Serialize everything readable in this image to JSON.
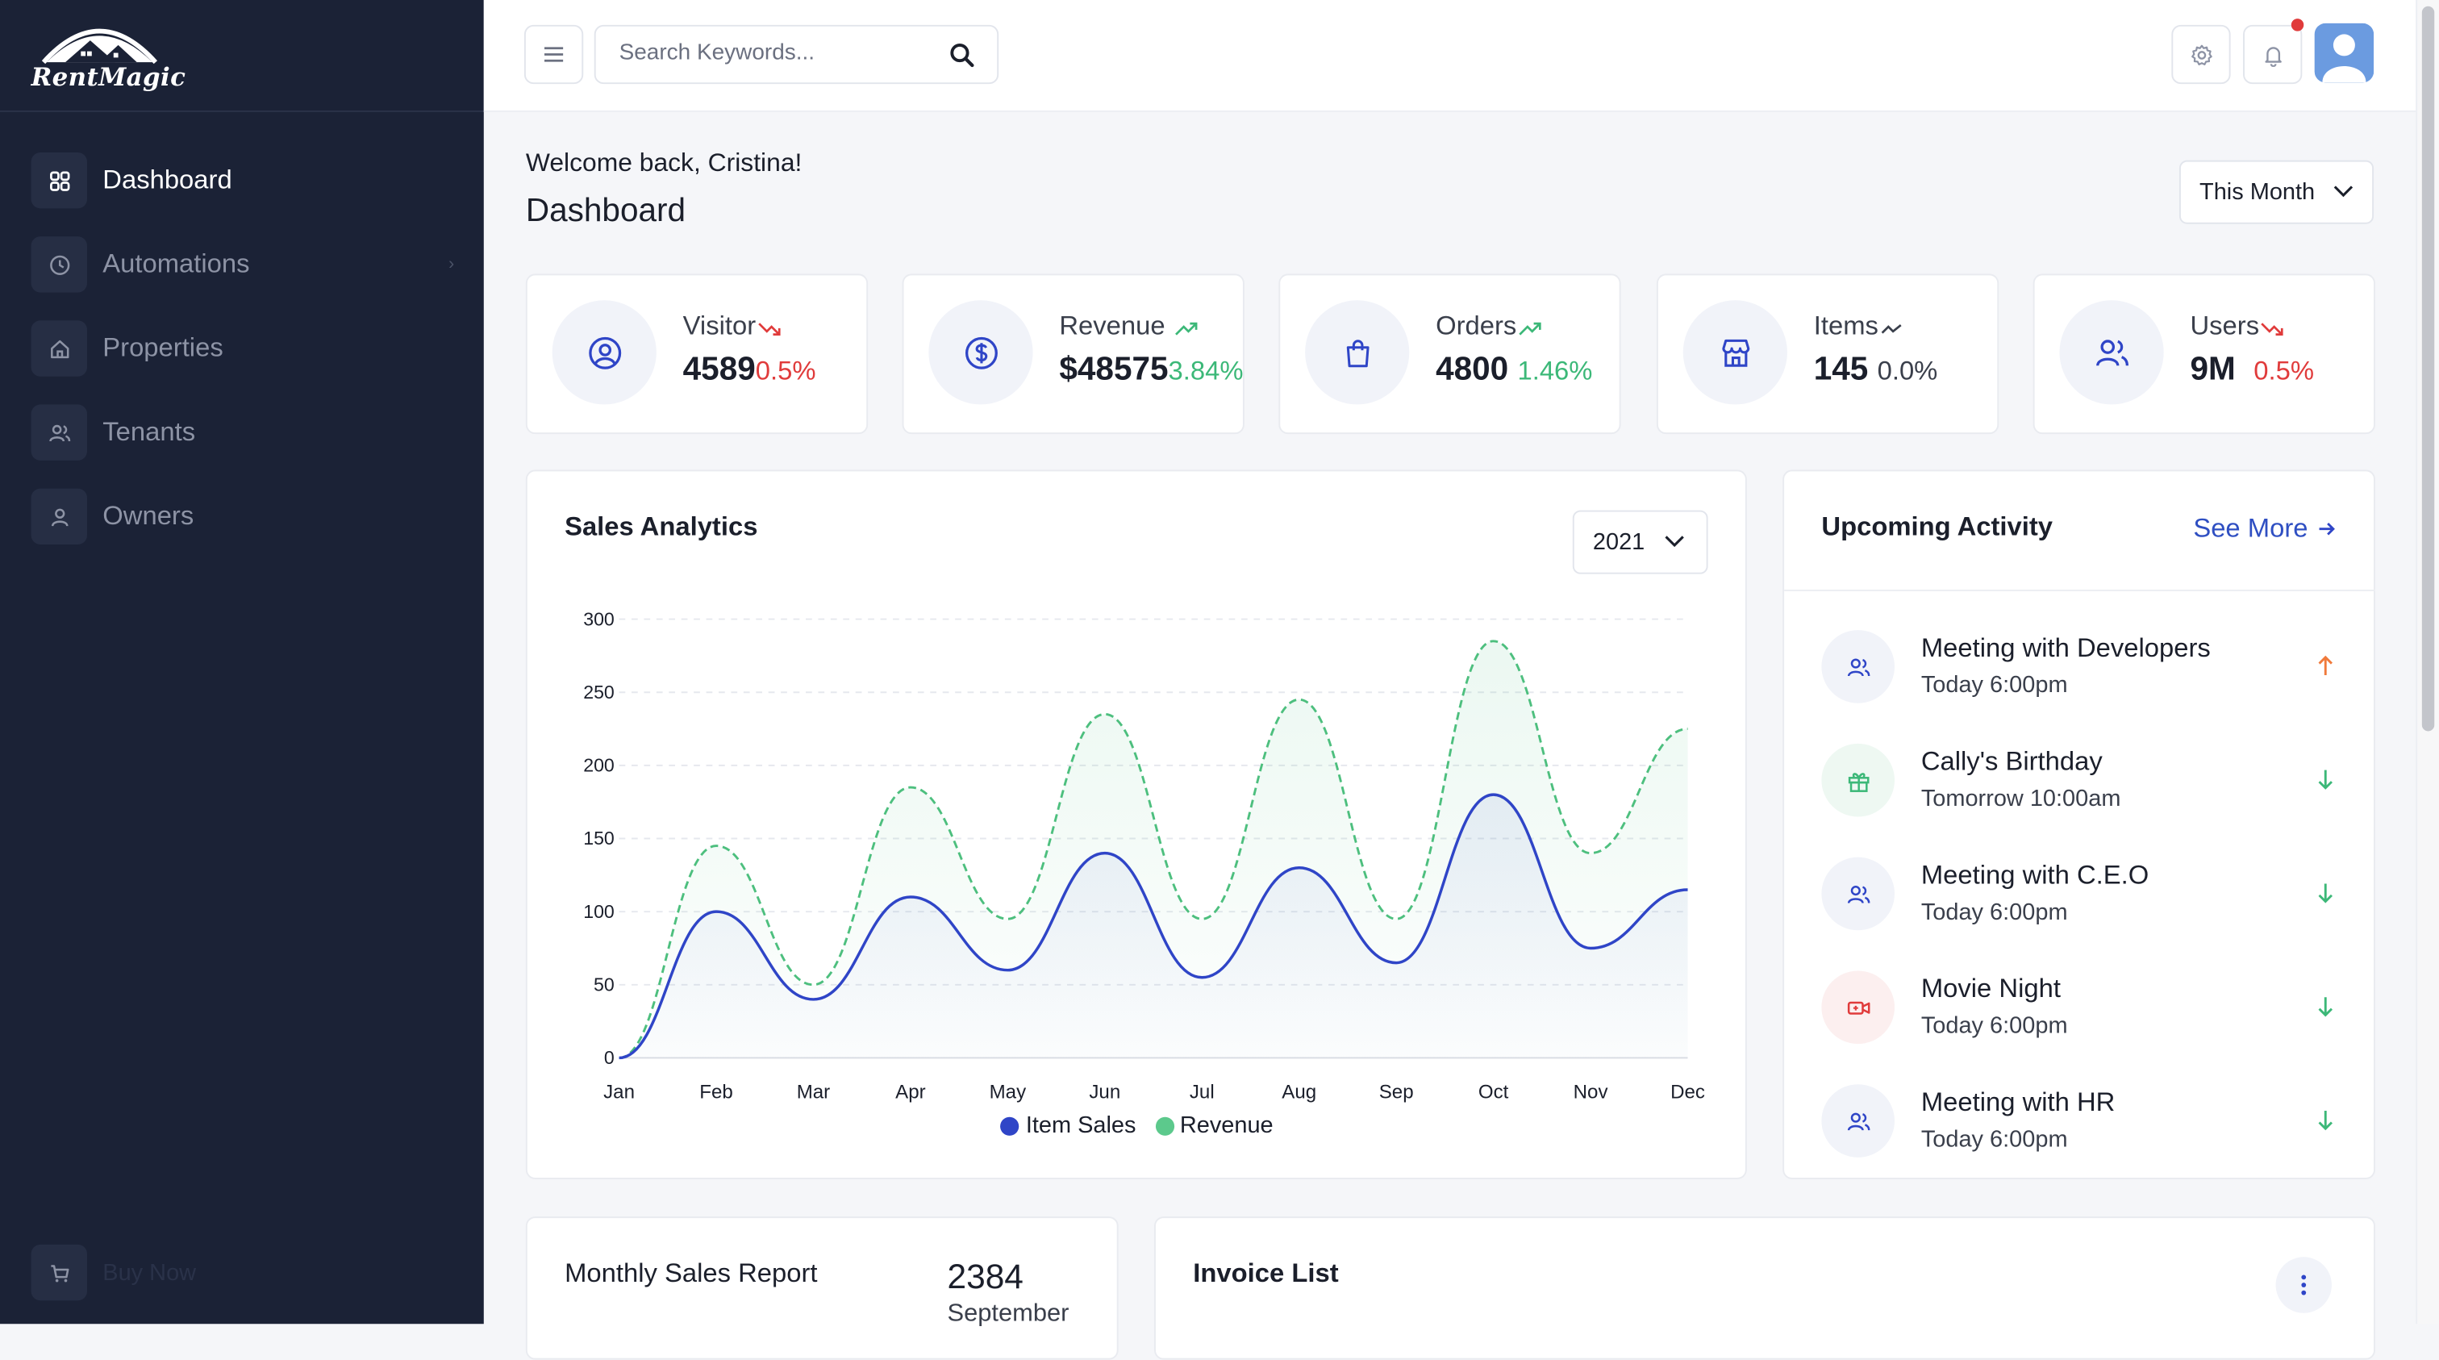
{
  "app": {
    "logo_text": "RentMagic"
  },
  "sidebar": {
    "items": [
      {
        "label": "Dashboard",
        "icon": "grid-icon",
        "active": true
      },
      {
        "label": "Automations",
        "icon": "clock-icon",
        "active": false
      },
      {
        "label": "Properties",
        "icon": "home-icon",
        "active": false
      },
      {
        "label": "Tenants",
        "icon": "users-icon",
        "active": false
      },
      {
        "label": "Owners",
        "icon": "user-icon",
        "active": false
      }
    ],
    "buy_now": "Buy Now"
  },
  "header": {
    "search_placeholder": "Search Keywords..."
  },
  "main": {
    "welcome": "Welcome back, Cristina!",
    "title": "Dashboard",
    "period_select": "This Month"
  },
  "stats": [
    {
      "label": "Visitor",
      "value": "4589",
      "change": "0.5%",
      "trend": "down"
    },
    {
      "label": "Revenue",
      "value": "$48575",
      "change": "3.84%",
      "trend": "up"
    },
    {
      "label": "Orders",
      "value": "4800",
      "change": "1.46%",
      "trend": "up"
    },
    {
      "label": "Items",
      "value": "145",
      "change": "0.0%",
      "trend": "neutral"
    },
    {
      "label": "Users",
      "value": "9M",
      "change": "0.5%",
      "trend": "down"
    }
  ],
  "sales_analytics": {
    "title": "Sales Analytics",
    "year": "2021"
  },
  "chart_data": {
    "type": "line",
    "categories": [
      "Jan",
      "Feb",
      "Mar",
      "Apr",
      "May",
      "Jun",
      "Jul",
      "Aug",
      "Sep",
      "Oct",
      "Nov",
      "Dec"
    ],
    "series": [
      {
        "name": "Item Sales",
        "values": [
          0,
          100,
          40,
          110,
          60,
          140,
          55,
          130,
          65,
          180,
          75,
          115
        ],
        "color": "#2f45c7",
        "style": "solid"
      },
      {
        "name": "Revenue",
        "values": [
          0,
          145,
          50,
          185,
          95,
          235,
          95,
          245,
          95,
          285,
          140,
          225
        ],
        "color": "#3cb878",
        "style": "dashed"
      }
    ],
    "y_ticks": [
      0,
      50,
      100,
      150,
      200,
      250,
      300
    ],
    "ylim": [
      0,
      300
    ],
    "grid": "horizontal dashed",
    "legend": "bottom-center"
  },
  "upcoming": {
    "title": "Upcoming Activity",
    "see_more": "See More",
    "items": [
      {
        "title": "Meeting with Developers",
        "time": "Today 6:00pm",
        "icon": "users-icon",
        "arrow": "up"
      },
      {
        "title": "Cally's Birthday",
        "time": "Tomorrow 10:00am",
        "icon": "gift-icon",
        "arrow": "down"
      },
      {
        "title": "Meeting with C.E.O",
        "time": "Today 6:00pm",
        "icon": "users-icon",
        "arrow": "down"
      },
      {
        "title": "Movie Night",
        "time": "Today 6:00pm",
        "icon": "video-icon",
        "arrow": "down"
      },
      {
        "title": "Meeting with HR",
        "time": "Today 6:00pm",
        "icon": "users-icon",
        "arrow": "down"
      }
    ]
  },
  "monthly_sales": {
    "title": "Monthly Sales Report",
    "value": "2384",
    "month": "September"
  },
  "invoice": {
    "title": "Invoice List"
  },
  "colors": {
    "sidebar_bg": "#1b2236",
    "accent": "#2f45c7",
    "positive": "#3cb878",
    "negative": "#e03b3b"
  }
}
